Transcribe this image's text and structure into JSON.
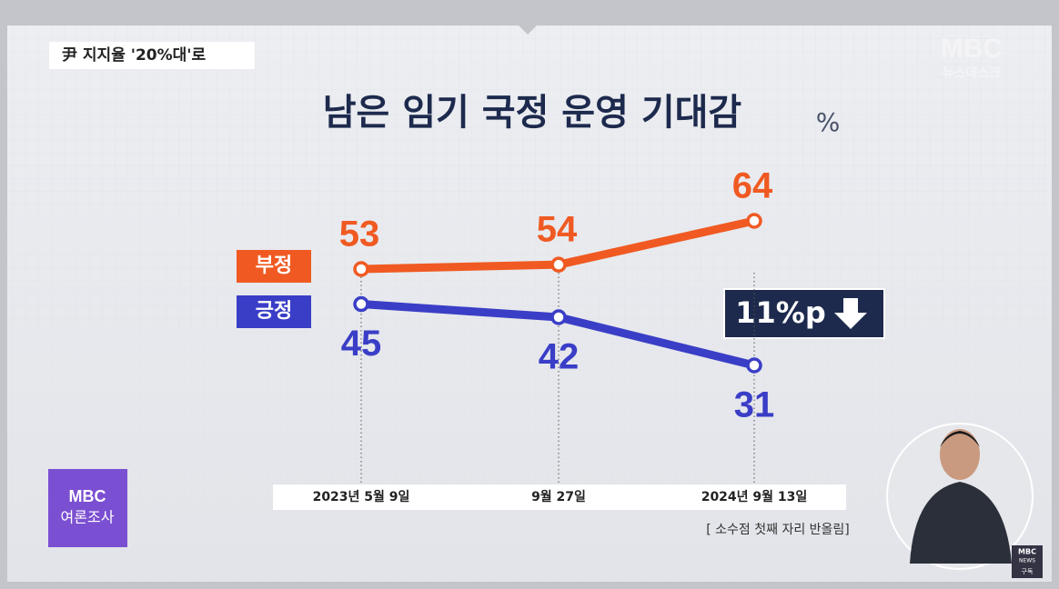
{
  "header": {
    "tag": "尹 지지율 '20%대'로"
  },
  "logo": {
    "brand": "MBC",
    "program": "뉴스데스크"
  },
  "badge": {
    "brand": "MBC",
    "label": "여론조사"
  },
  "corner_logo": {
    "brand": "MBC",
    "sub": "NEWS",
    "action": "구독"
  },
  "chart_data": {
    "type": "line",
    "title": "남은 임기 국정 운영 기대감",
    "unit": "%",
    "categories": [
      "2023년 5월 9일",
      "9월 27일",
      "2024년 9월 13일"
    ],
    "series": [
      {
        "name": "부정",
        "color": "#f05a22",
        "values": [
          53,
          54,
          64
        ]
      },
      {
        "name": "긍정",
        "color": "#3a3ec6",
        "values": [
          45,
          42,
          31
        ]
      }
    ],
    "annotation": "11%p",
    "note": "[ 소수점 첫째 자리 반올림]"
  }
}
